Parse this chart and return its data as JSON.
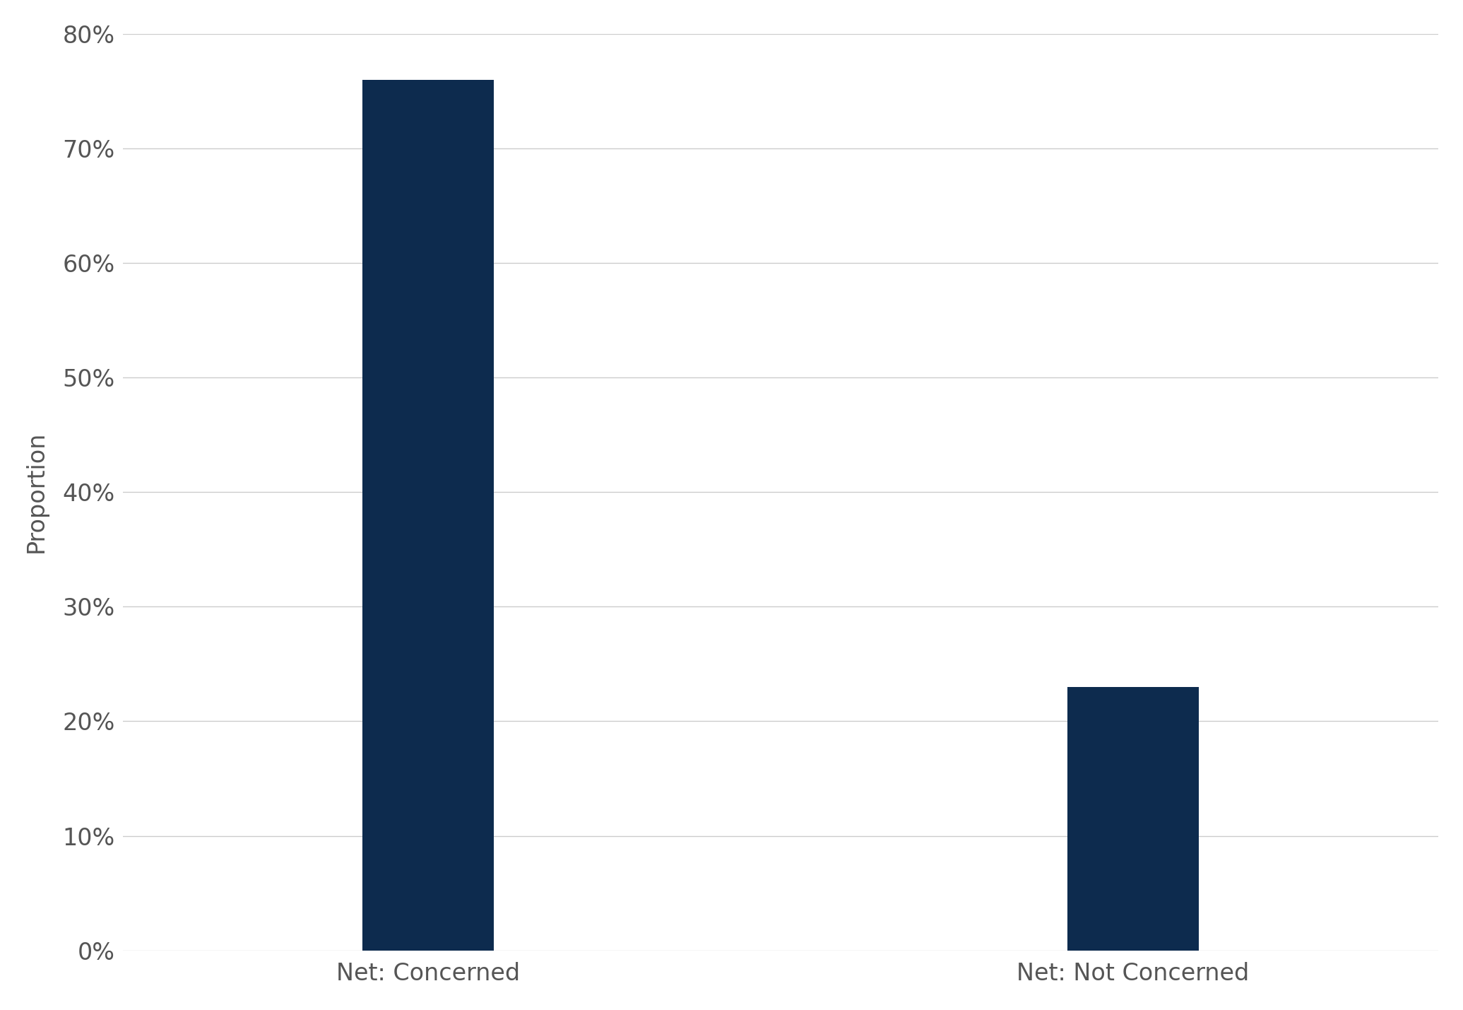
{
  "categories": [
    "Net: Concerned",
    "Net: Not Concerned"
  ],
  "values": [
    0.76,
    0.23
  ],
  "bar_color": "#0d2b4e",
  "ylabel": "Proportion",
  "ylim": [
    0,
    0.8
  ],
  "yticks": [
    0.0,
    0.1,
    0.2,
    0.3,
    0.4,
    0.5,
    0.6,
    0.7,
    0.8
  ],
  "ytick_labels": [
    "0%",
    "10%",
    "20%",
    "30%",
    "40%",
    "50%",
    "60%",
    "70%",
    "80%"
  ],
  "background_color": "#ffffff",
  "grid_color": "#cccccc",
  "bar_width": 0.28,
  "tick_label_fontsize": 24,
  "ylabel_fontsize": 24,
  "xlabel_fontsize": 24,
  "x_positions": [
    1.0,
    2.5
  ],
  "xlim": [
    0.35,
    3.15
  ]
}
